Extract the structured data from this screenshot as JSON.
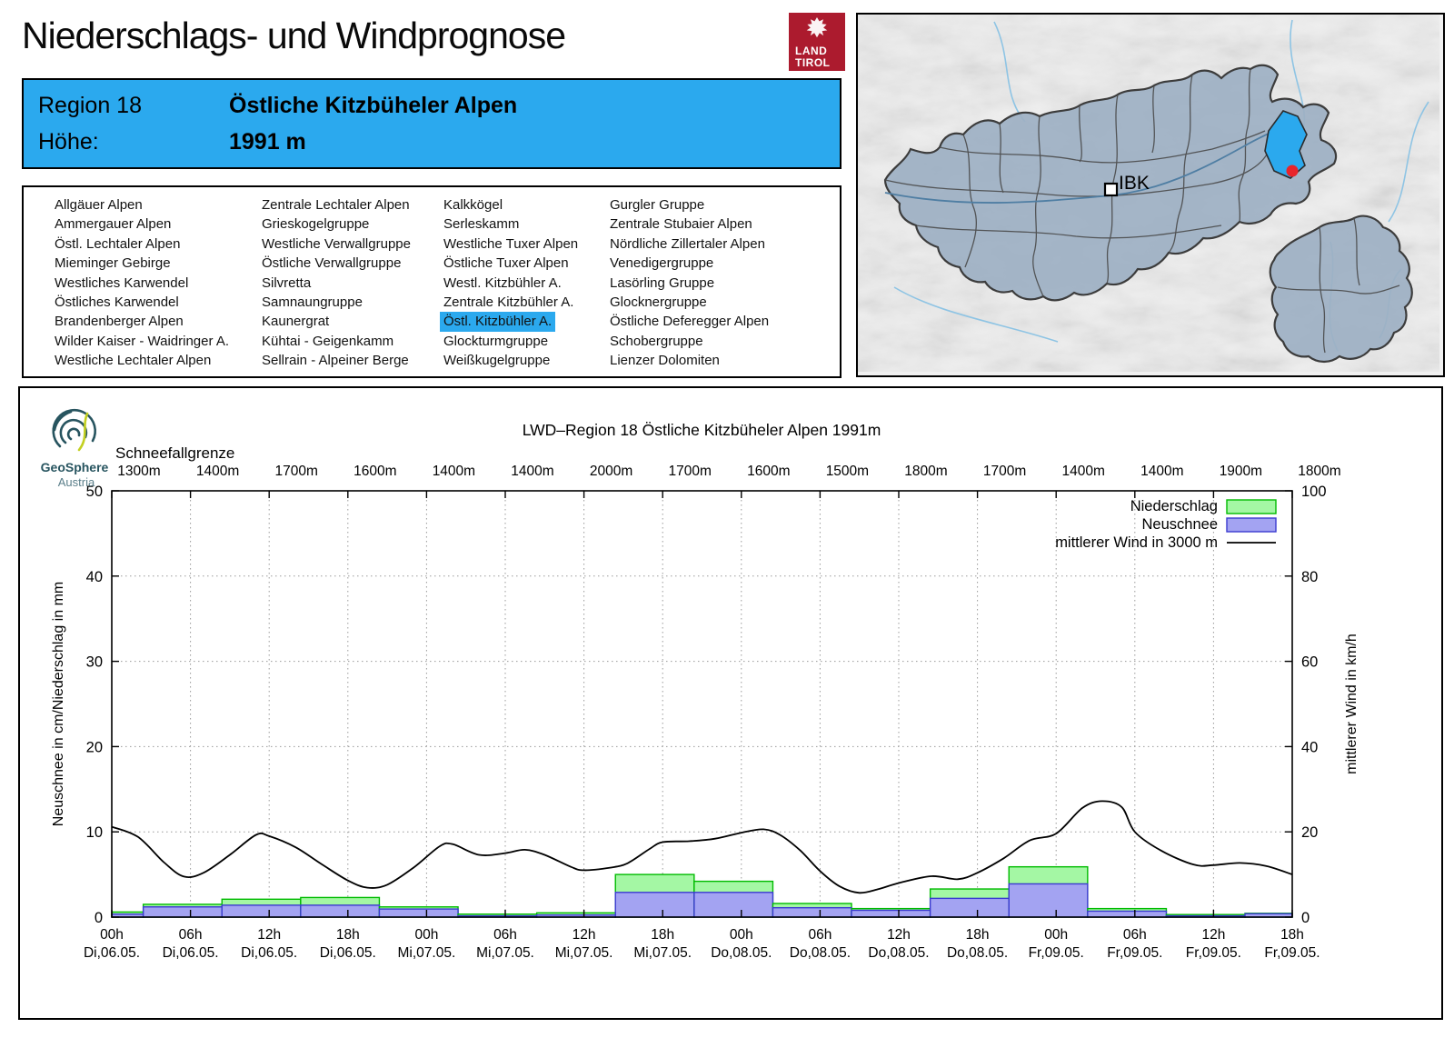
{
  "header": {
    "title": "Niederschlags- und Windprognose",
    "logo_line1": "LAND",
    "logo_line2": "TIROL"
  },
  "region_box": {
    "region_label": "Region 18",
    "region_name": "Östliche Kitzbüheler Alpen",
    "altitude_label": "Höhe:",
    "altitude_value": "1991 m"
  },
  "region_list": {
    "columns": [
      [
        "Allgäuer Alpen",
        "Ammergauer Alpen",
        "Östl. Lechtaler Alpen",
        "Mieminger Gebirge",
        "Westliches Karwendel",
        "Östliches Karwendel",
        "Brandenberger Alpen",
        "Wilder Kaiser - Waidringer A.",
        "Westliche Lechtaler Alpen"
      ],
      [
        "Zentrale Lechtaler Alpen",
        "Grieskogelgruppe",
        "Westliche Verwallgruppe",
        "Östliche Verwallgruppe",
        "Silvretta",
        "Samnaungruppe",
        "Kaunergrat",
        "Kühtai - Geigenkamm",
        "Sellrain - Alpeiner Berge"
      ],
      [
        "Kalkkögel",
        "Serleskamm",
        "Westliche Tuxer Alpen",
        "Östliche Tuxer Alpen",
        "Westl. Kitzbühler A.",
        "Zentrale Kitzbühler A.",
        "Östl. Kitzbühler A.",
        "Glockturmgruppe",
        "Weißkugelgruppe"
      ],
      [
        "Gurgler Gruppe",
        "Zentrale Stubaier Alpen",
        "Nördliche Zillertaler Alpen",
        "Venedigergruppe",
        "Lasörling Gruppe",
        "Glocknergruppe",
        "Östliche Deferegger Alpen",
        "Schobergruppe",
        "Lienzer Dolomiten"
      ]
    ],
    "selected_column": 2,
    "selected_row": 6,
    "selected_label": "Östl. Kitzbühler A."
  },
  "map": {
    "city_label": "IBK",
    "highlight_color": "#2BA9EE",
    "region_fill": "#9DB0C3",
    "marker_color": "#E8242B"
  },
  "branding": {
    "geosphere_line1": "GeoSphere",
    "geosphere_line2": "Austria"
  },
  "chart_data": {
    "type": "bar+line",
    "title": "LWD–Region 18 Östliche Kitzbüheler Alpen 1991m",
    "snowline": {
      "label": "Schneefallgrenze",
      "values": [
        "1300m",
        "1400m",
        "1700m",
        "1600m",
        "1400m",
        "1400m",
        "2000m",
        "1700m",
        "1600m",
        "1500m",
        "1800m",
        "1700m",
        "1400m",
        "1400m",
        "1900m",
        "1800m"
      ]
    },
    "x_ticks": {
      "hours": [
        "00h",
        "06h",
        "12h",
        "18h",
        "00h",
        "06h",
        "12h",
        "18h",
        "00h",
        "06h",
        "12h",
        "18h",
        "00h",
        "06h",
        "12h",
        "18h"
      ],
      "dates": [
        "Di,06.05.",
        "Di,06.05.",
        "Di,06.05.",
        "Di,06.05.",
        "Mi,07.05.",
        "Mi,07.05.",
        "Mi,07.05.",
        "Mi,07.05.",
        "Do,08.05.",
        "Do,08.05.",
        "Do,08.05.",
        "Do,08.05.",
        "Fr,09.05.",
        "Fr,09.05.",
        "Fr,09.05.",
        "Fr,09.05."
      ]
    },
    "axes": {
      "left_label": "Neuschnee in cm/Niederschlag in mm",
      "right_label": "mittlerer Wind in km/h",
      "left_ticks": [
        0,
        10,
        20,
        30,
        40,
        50
      ],
      "right_ticks": [
        0,
        20,
        40,
        60,
        80,
        100
      ],
      "left_range": [
        0,
        50
      ],
      "right_range": [
        0,
        100
      ],
      "hours_range": [
        0,
        90
      ],
      "grid": true
    },
    "legend": [
      {
        "label": "Niederschlag",
        "fill": "#A4F7A4",
        "stroke": "#00BB00"
      },
      {
        "label": "Neuschnee",
        "fill": "#A3A3F2",
        "stroke": "#3A3AD0"
      },
      {
        "label": "mittlerer Wind in 3000 m",
        "stroke": "#000000"
      }
    ],
    "bars_unit_hours": 6,
    "bars": [
      {
        "t0": 0.0,
        "t1": 2.4,
        "niederschlag_mm": 0.6,
        "neuschnee_cm": 0.35
      },
      {
        "t0": 2.4,
        "t1": 8.4,
        "niederschlag_mm": 1.5,
        "neuschnee_cm": 1.2
      },
      {
        "t0": 8.4,
        "t1": 14.4,
        "niederschlag_mm": 2.1,
        "neuschnee_cm": 1.4
      },
      {
        "t0": 14.4,
        "t1": 20.4,
        "niederschlag_mm": 2.3,
        "neuschnee_cm": 1.4
      },
      {
        "t0": 20.4,
        "t1": 26.4,
        "niederschlag_mm": 1.2,
        "neuschnee_cm": 0.95
      },
      {
        "t0": 26.4,
        "t1": 32.4,
        "niederschlag_mm": 0.35,
        "neuschnee_cm": 0.15
      },
      {
        "t0": 32.4,
        "t1": 38.4,
        "niederschlag_mm": 0.5,
        "neuschnee_cm": 0.25
      },
      {
        "t0": 38.4,
        "t1": 44.4,
        "niederschlag_mm": 5.0,
        "neuschnee_cm": 2.9
      },
      {
        "t0": 44.4,
        "t1": 50.4,
        "niederschlag_mm": 4.2,
        "neuschnee_cm": 2.9
      },
      {
        "t0": 50.4,
        "t1": 56.4,
        "niederschlag_mm": 1.6,
        "neuschnee_cm": 1.1
      },
      {
        "t0": 56.4,
        "t1": 62.4,
        "niederschlag_mm": 1.0,
        "neuschnee_cm": 0.8
      },
      {
        "t0": 62.4,
        "t1": 68.4,
        "niederschlag_mm": 3.3,
        "neuschnee_cm": 2.2
      },
      {
        "t0": 68.4,
        "t1": 74.4,
        "niederschlag_mm": 5.9,
        "neuschnee_cm": 3.9
      },
      {
        "t0": 74.4,
        "t1": 80.4,
        "niederschlag_mm": 1.0,
        "neuschnee_cm": 0.7
      },
      {
        "t0": 80.4,
        "t1": 86.4,
        "niederschlag_mm": 0.3,
        "neuschnee_cm": 0.15
      },
      {
        "t0": 86.4,
        "t1": 90.0,
        "niederschlag_mm": 0.45,
        "neuschnee_cm": 0.4
      }
    ],
    "wind_kmh": [
      [
        0,
        21.2
      ],
      [
        2,
        18.8
      ],
      [
        4,
        12.8
      ],
      [
        5.5,
        9.5
      ],
      [
        7,
        10.4
      ],
      [
        9,
        14.6
      ],
      [
        11,
        19.3
      ],
      [
        12,
        19.0
      ],
      [
        14,
        16.4
      ],
      [
        16,
        12.4
      ],
      [
        18,
        8.6
      ],
      [
        19.5,
        6.9
      ],
      [
        21,
        7.6
      ],
      [
        23,
        11.6
      ],
      [
        25,
        16.6
      ],
      [
        26,
        17.1
      ],
      [
        28,
        14.6
      ],
      [
        30,
        15.0
      ],
      [
        31.5,
        15.8
      ],
      [
        33,
        14.6
      ],
      [
        35,
        11.8
      ],
      [
        36,
        11.0
      ],
      [
        38,
        11.6
      ],
      [
        39.3,
        12.6
      ],
      [
        41,
        16.0
      ],
      [
        42,
        17.6
      ],
      [
        44,
        17.8
      ],
      [
        46,
        18.4
      ],
      [
        48,
        19.8
      ],
      [
        49.7,
        20.6
      ],
      [
        51,
        19.2
      ],
      [
        52.5,
        15.6
      ],
      [
        54,
        10.8
      ],
      [
        55.5,
        7.2
      ],
      [
        57,
        5.7
      ],
      [
        58.5,
        6.6
      ],
      [
        60,
        8.0
      ],
      [
        62.5,
        9.6
      ],
      [
        64.5,
        8.9
      ],
      [
        66,
        10.4
      ],
      [
        68,
        13.8
      ],
      [
        70,
        18.0
      ],
      [
        72,
        19.6
      ],
      [
        74,
        25.6
      ],
      [
        75.5,
        27.2
      ],
      [
        77,
        25.8
      ],
      [
        78,
        20.0
      ],
      [
        80,
        15.6
      ],
      [
        82.5,
        12.3
      ],
      [
        84,
        12.2
      ],
      [
        86,
        12.7
      ],
      [
        88,
        12.0
      ],
      [
        90,
        10.0
      ]
    ]
  }
}
